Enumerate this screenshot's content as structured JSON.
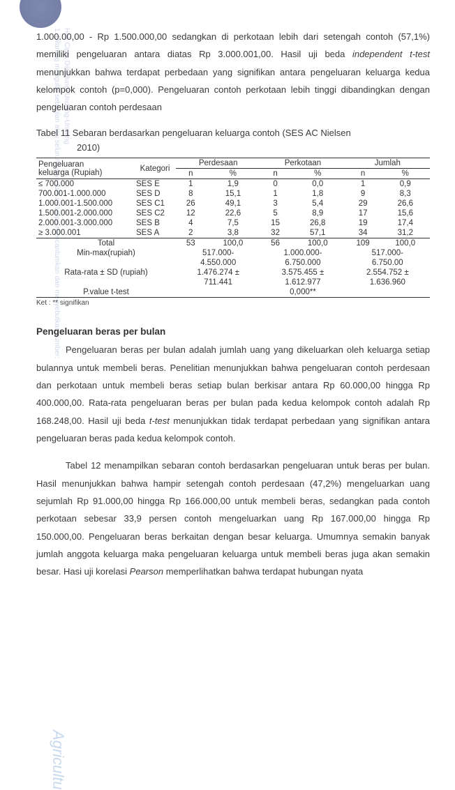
{
  "watermark": {
    "vertical_lines": "Hak Cipta Dilindungi Undang-Undang\n1. Dilarang mengutip sebagian atau seluruh karya tulis ini tanpa mencantumkan dan menyebutkan sumber:",
    "bottom": "Agricultu"
  },
  "para_top": "1.000.00,00 - Rp 1.500.000,00 sedangkan di perkotaan lebih dari setengah contoh (57,1%) memiliki pengeluaran antara diatas Rp 3.000.001,00. Hasil uji beda <i>independent t-test</i> menunjukkan bahwa terdapat perbedaan yang signifikan antara pengeluaran keluarga kedua kelompok contoh (p=0,000). Pengeluaran contoh perkotaan lebih tinggi dibandingkan dengan pengeluaran contoh perdesaan",
  "table_caption_line1": "Tabel 11 Sebaran berdasarkan pengeluaran keluarga contoh (SES AC Nielsen",
  "table_caption_line2": "2010)",
  "table": {
    "header1": {
      "c1": "Pengeluaran",
      "c1b": "keluarga (Rupiah)",
      "c2": "Kategori",
      "c3": "Perdesaan",
      "c4": "Perkotaan",
      "c5": "Jumlah"
    },
    "header2": {
      "n": "n",
      "pct": "%"
    },
    "rows": [
      {
        "range": "≤ 700.000",
        "kat": "SES E",
        "pn": "1",
        "pp": "1,9",
        "kn": "0",
        "kp": "0,0",
        "jn": "1",
        "jp": "0,9"
      },
      {
        "range": "700.001-1.000.000",
        "kat": "SES D",
        "pn": "8",
        "pp": "15,1",
        "kn": "1",
        "kp": "1,8",
        "jn": "9",
        "jp": "8,3"
      },
      {
        "range": "1.000.001-1.500.000",
        "kat": "SES C1",
        "pn": "26",
        "pp": "49,1",
        "kn": "3",
        "kp": "5,4",
        "jn": "29",
        "jp": "26,6"
      },
      {
        "range": "1.500.001-2.000.000",
        "kat": "SES C2",
        "pn": "12",
        "pp": "22,6",
        "kn": "5",
        "kp": "8,9",
        "jn": "17",
        "jp": "15,6"
      },
      {
        "range": "2.000.001-3.000.000",
        "kat": "SES B",
        "pn": "4",
        "pp": "7,5",
        "kn": "15",
        "kp": "26,8",
        "jn": "19",
        "jp": "17,4"
      },
      {
        "range": "≥ 3.000.001",
        "kat": "SES A",
        "pn": "2",
        "pp": "3,8",
        "kn": "32",
        "kp": "57,1",
        "jn": "34",
        "jp": "31,2"
      }
    ],
    "total": {
      "label": "Total",
      "pn": "53",
      "pp": "100,0",
      "kn": "56",
      "kp": "100,0",
      "jn": "109",
      "jp": "100,0"
    },
    "minmax": {
      "label": "Min-max(rupiah)",
      "p": "517.000-",
      "p2": "4.550.000",
      "k": "1.000.000-",
      "k2": "6.750.000",
      "j": "517.000-",
      "j2": "6.750.00"
    },
    "rata": {
      "label": "Rata-rata ± SD (rupiah)",
      "p": "1.476.274 ±",
      "p2": "711.441",
      "k": "3.575.455 ±",
      "k2": "1.612.977",
      "j": "2.554.752 ±",
      "j2": "1.636.960"
    },
    "pvalue": {
      "label": "P.value t-test",
      "val": "0,000**"
    }
  },
  "ket": "Ket : ** signifikan",
  "heading2": "Pengeluaran beras per bulan",
  "para2": "Pengeluaran beras per bulan adalah jumlah uang yang dikeluarkan oleh keluarga setiap bulannya untuk membeli beras. Penelitian menunjukkan bahwa pengeluaran contoh perdesaan dan perkotaan untuk membeli beras setiap bulan berkisar antara Rp 60.000,00 hingga Rp 400.000,00. Rata-rata pengeluaran beras per bulan pada kedua kelompok contoh adalah Rp 168.248,00. Hasil uji beda <i>t-test</i> menunjukkan tidak terdapat perbedaan yang signifikan antara pengeluaran beras pada kedua kelompok contoh.",
  "para3": "Tabel 12 menampilkan sebaran contoh berdasarkan pengeluaran untuk beras per bulan. Hasil menunjukkan bahwa hampir setengah contoh perdesaan (47,2%) mengeluarkan uang sejumlah Rp 91.000,00 hingga Rp 166.000,00 untuk membeli beras, sedangkan pada contoh perkotaan sebesar 33,9 persen contoh mengeluarkan uang Rp 167.000,00 hingga Rp 150.000,00. Pengeluaran beras berkaitan dengan besar keluarga. Umumnya semakin banyak jumlah anggota keluarga maka pengeluaran keluarga untuk membeli beras juga akan semakin besar. Hasi uji korelasi <i>Pearson</i> memperlihatkan bahwa terdapat hubungan nyata"
}
